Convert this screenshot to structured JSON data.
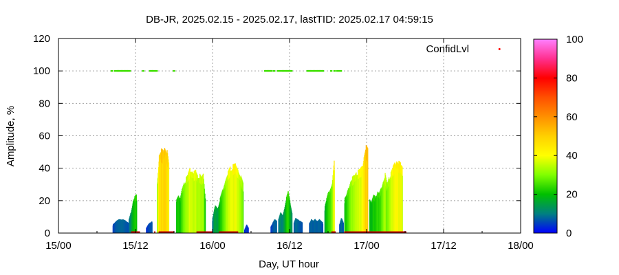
{
  "chart_data": {
    "type": "bar",
    "title": "DB-JR, 2025.02.15 - 2025.02.17, lastTID: 2025.02.17 04:59:15",
    "xlabel": "Day, UT hour",
    "ylabel": "Amplitude, %",
    "x_unit": "hours since 15/00",
    "xlim": [
      0,
      72
    ],
    "ylim": [
      0,
      120
    ],
    "x_ticks": [
      {
        "value": 0,
        "label": "15/00"
      },
      {
        "value": 12,
        "label": "15/12"
      },
      {
        "value": 24,
        "label": "16/00"
      },
      {
        "value": 36,
        "label": "16/12"
      },
      {
        "value": 48,
        "label": "17/00"
      },
      {
        "value": 60,
        "label": "17/12"
      },
      {
        "value": 72,
        "label": "18/00"
      }
    ],
    "y_ticks": [
      0,
      20,
      40,
      60,
      80,
      100,
      120
    ],
    "grid": true,
    "legend": {
      "position": "top-right",
      "label": "ConfidLvl",
      "marker_color": "#ff0000"
    },
    "colorbar": {
      "range": [
        0,
        100
      ],
      "ticks": [
        0,
        20,
        40,
        60,
        80,
        100
      ],
      "stops": [
        {
          "value": 0,
          "color": "#0000ff"
        },
        {
          "value": 10,
          "color": "#008080"
        },
        {
          "value": 20,
          "color": "#00c000"
        },
        {
          "value": 30,
          "color": "#80ff00"
        },
        {
          "value": 40,
          "color": "#ffff00"
        },
        {
          "value": 50,
          "color": "#ffd000"
        },
        {
          "value": 60,
          "color": "#ff9000"
        },
        {
          "value": 70,
          "color": "#ff5000"
        },
        {
          "value": 80,
          "color": "#ff0000"
        },
        {
          "value": 90,
          "color": "#ff3090"
        },
        {
          "value": 100,
          "color": "#ff80ff"
        }
      ]
    },
    "amplitude_series": [
      {
        "x": [
          8.5,
          9.0,
          9.5,
          10.0,
          10.5,
          11.0
        ],
        "y": [
          5,
          7,
          8,
          8,
          7,
          6
        ]
      },
      {
        "x": [
          11.0,
          11.3,
          11.6,
          11.9,
          12.2
        ],
        "y": [
          8,
          12,
          18,
          21,
          22
        ]
      },
      {
        "x": [
          13.7,
          14.0,
          14.3,
          14.6
        ],
        "y": [
          3,
          5,
          6,
          7
        ]
      },
      {
        "x": [
          15.4,
          15.7,
          16.0,
          16.3,
          16.6,
          16.9,
          17.2
        ],
        "y": [
          30,
          45,
          48,
          47,
          50,
          48,
          40
        ]
      },
      {
        "x": [
          18.4,
          18.7,
          19.0,
          19.3,
          19.6,
          19.9,
          20.2,
          20.5,
          20.8,
          21.1,
          21.4,
          21.7,
          22.0,
          22.3,
          22.6,
          22.9
        ],
        "y": [
          20,
          22,
          20,
          26,
          29,
          32,
          34,
          37,
          36,
          35,
          36,
          33,
          34,
          32,
          34,
          20
        ]
      },
      {
        "x": [
          24.0,
          24.4,
          24.8,
          25.2,
          25.6,
          26.0,
          26.4,
          26.8,
          27.2,
          27.6,
          28.0,
          28.4,
          28.8
        ],
        "y": [
          8,
          16,
          14,
          20,
          25,
          30,
          35,
          38,
          39,
          40,
          36,
          33,
          28
        ]
      },
      {
        "x": [
          29.0,
          29.3,
          29.6
        ],
        "y": [
          2,
          5,
          3
        ]
      },
      {
        "x": [
          33.1,
          33.4,
          33.7,
          34.0
        ],
        "y": [
          4,
          6,
          8,
          7
        ]
      },
      {
        "x": [
          34.3,
          34.6,
          34.9,
          35.2,
          35.5,
          35.8,
          36.1,
          36.4
        ],
        "y": [
          8,
          12,
          10,
          14,
          20,
          24,
          18,
          12
        ]
      },
      {
        "x": [
          36.7,
          37.0,
          37.3,
          37.6,
          38.0
        ],
        "y": [
          6,
          9,
          8,
          7,
          6
        ]
      },
      {
        "x": [
          39.1,
          39.4,
          39.7,
          40.0,
          40.3,
          40.6,
          40.9,
          41.2
        ],
        "y": [
          6,
          8,
          7,
          8,
          7,
          8,
          7,
          6
        ]
      },
      {
        "x": [
          41.5,
          41.8,
          42.1,
          42.4,
          42.7,
          43.0
        ],
        "y": [
          15,
          20,
          24,
          26,
          30,
          43
        ]
      },
      {
        "x": [
          43.8,
          44.1,
          44.4
        ],
        "y": [
          5,
          9,
          6
        ]
      },
      {
        "x": [
          44.6,
          44.9,
          45.2,
          45.5,
          45.8,
          46.1,
          46.4,
          46.7,
          47.0,
          47.3,
          47.6,
          47.9,
          48.2
        ],
        "y": [
          20,
          22,
          26,
          30,
          32,
          33,
          35,
          36,
          37,
          38,
          44,
          50,
          48
        ]
      },
      {
        "x": [
          48.5,
          48.8,
          49.1,
          49.4,
          49.7,
          50.0,
          50.3,
          50.6,
          50.9,
          51.2,
          51.5,
          51.8,
          52.1,
          52.4,
          52.7,
          53.0,
          53.3,
          53.6
        ],
        "y": [
          20,
          18,
          22,
          21,
          24,
          23,
          26,
          30,
          34,
          28,
          32,
          35,
          38,
          40,
          42,
          41,
          40,
          38
        ]
      }
    ],
    "confidence_series": {
      "y": 100,
      "x": [
        8.3,
        8.8,
        9.1,
        9.3,
        9.5,
        9.7,
        9.9,
        10.1,
        10.3,
        10.5,
        10.7,
        10.9,
        11.1,
        13.2,
        14.3,
        14.5,
        14.7,
        15.0,
        15.3,
        18.0,
        32.2,
        32.4,
        32.6,
        32.8,
        33.0,
        33.2,
        33.6,
        34.2,
        34.5,
        34.8,
        35.0,
        35.2,
        35.4,
        35.6,
        35.8,
        36.0,
        36.3,
        38.8,
        39.0,
        39.2,
        39.4,
        39.6,
        39.8,
        40.0,
        40.2,
        40.4,
        40.6,
        40.8,
        41.0,
        41.2,
        42.5,
        43.0,
        43.4,
        43.7,
        44.0
      ]
    },
    "confidence_baseline": {
      "y": 0,
      "segments": [
        [
          11.3,
          12.7
        ],
        [
          14.9,
          15.1
        ],
        [
          15.6,
          18.0
        ],
        [
          21.5,
          24.0
        ],
        [
          25.0,
          28.0
        ],
        [
          42.5,
          43.2
        ],
        [
          44.5,
          54.2
        ]
      ]
    },
    "legend_point": {
      "x": 68.7,
      "y": 113.5
    }
  }
}
